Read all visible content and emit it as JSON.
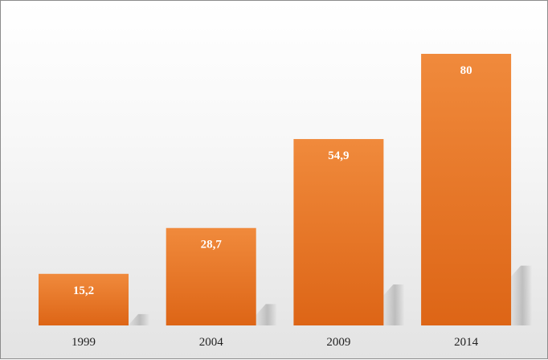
{
  "chart_data": {
    "type": "bar",
    "categories": [
      "1999",
      "2004",
      "2009",
      "2014"
    ],
    "values": [
      15.2,
      28.7,
      54.9,
      80
    ],
    "value_labels": [
      "15,2",
      "28,7",
      "54,9",
      "80"
    ],
    "title": "",
    "xlabel": "",
    "ylabel": "",
    "ylim": [
      0,
      80
    ],
    "grid": false,
    "legend": "none",
    "bar_color_light": "#f08a3c",
    "bar_color_dark": "#dd6516"
  }
}
